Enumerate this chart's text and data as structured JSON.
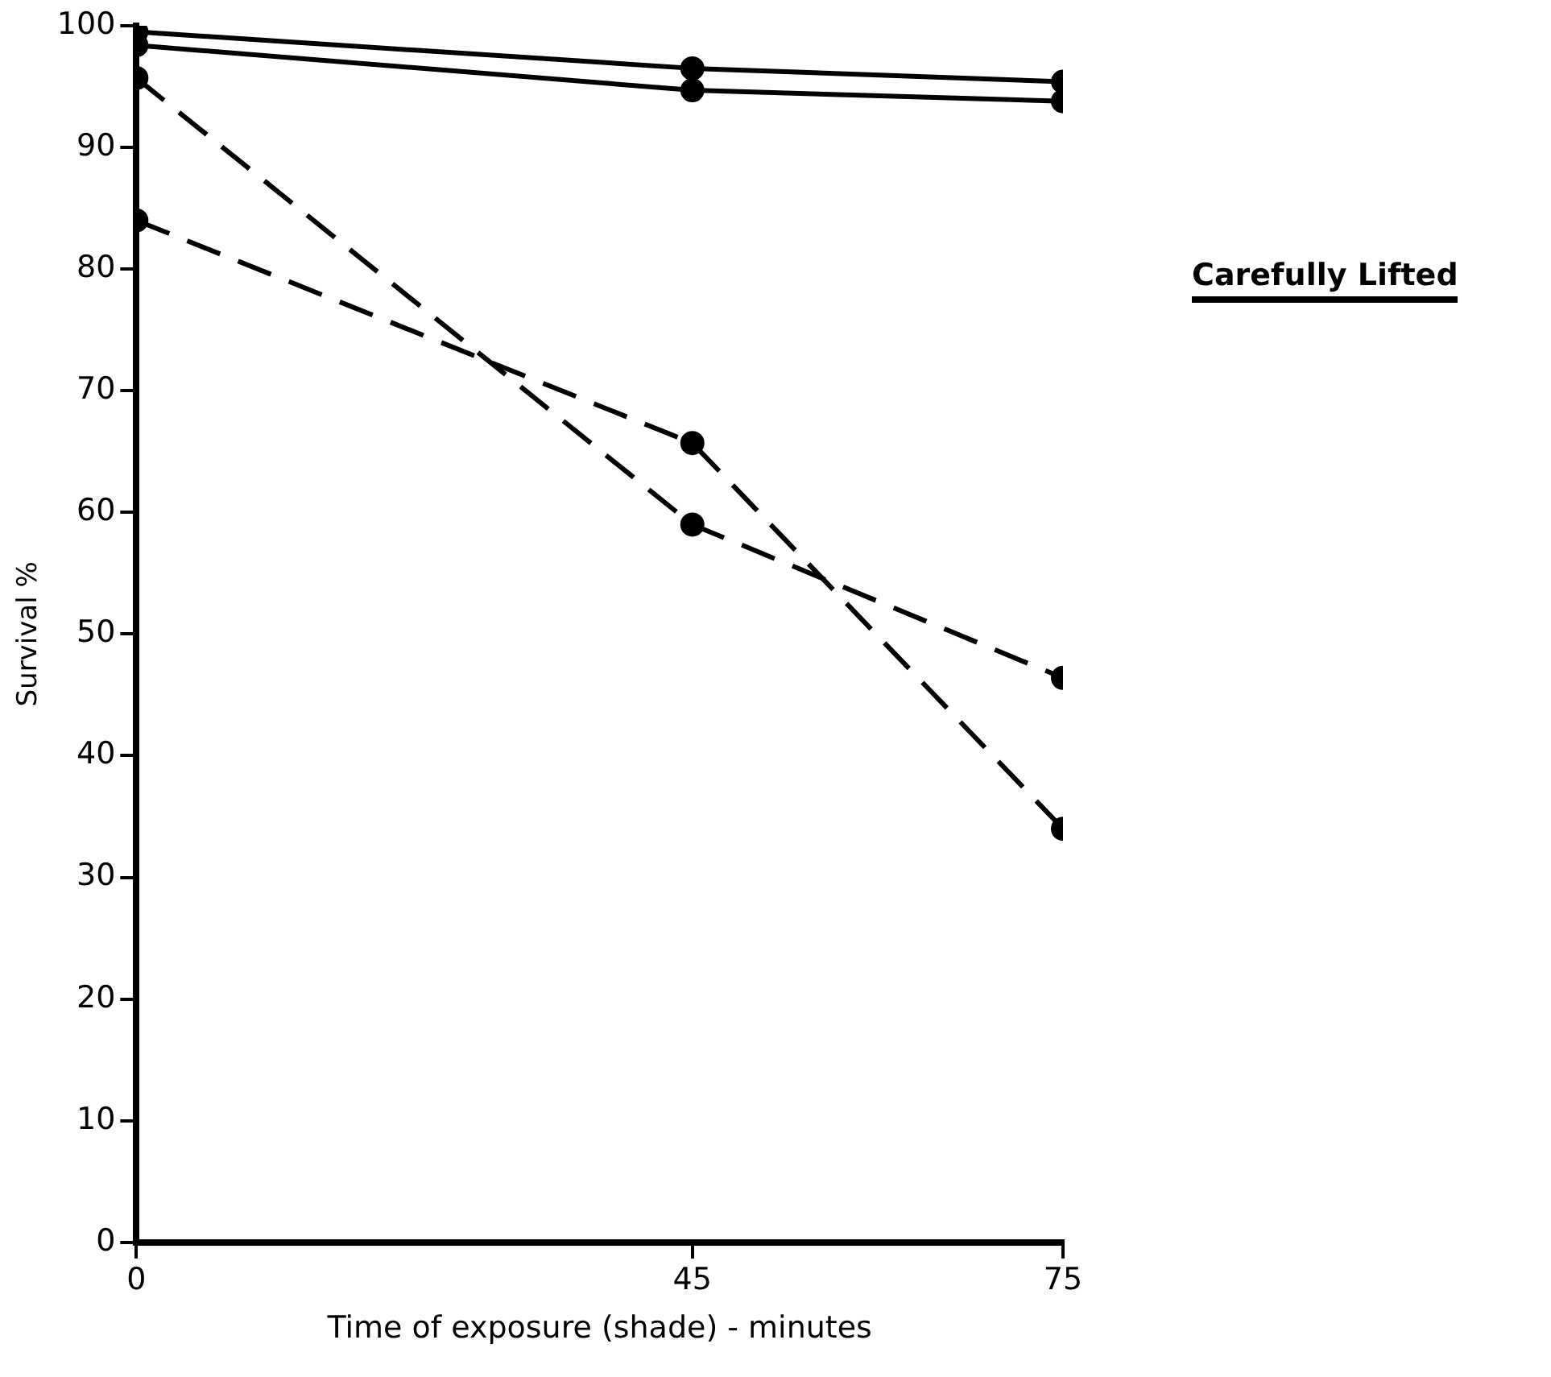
{
  "chart_data": {
    "type": "line",
    "xlabel": "Time of exposure (shade) - minutes",
    "ylabel": "Survival %",
    "x": [
      0,
      45,
      75
    ],
    "xlim": [
      0,
      75
    ],
    "xticks": [
      0,
      45,
      75
    ],
    "ylim": [
      0,
      100
    ],
    "yticks": [
      0,
      10,
      20,
      30,
      40,
      50,
      60,
      70,
      80,
      90,
      100
    ],
    "grid": false,
    "legend": false,
    "marker": "circle",
    "series": [
      {
        "color": "#000000",
        "line_style": "solid",
        "values": [
          99.5,
          96.5,
          95.4
        ]
      },
      {
        "color": "#000000",
        "line_style": "solid",
        "values": [
          98.4,
          94.7,
          93.8
        ]
      },
      {
        "color": "#000000",
        "line_style": "dashed",
        "values": [
          95.7,
          59.0,
          46.4
        ]
      },
      {
        "color": "#000000",
        "line_style": "dashed",
        "values": [
          84.0,
          65.7,
          34.0
        ]
      }
    ],
    "annotations": [
      "Carefully Lifted"
    ]
  }
}
